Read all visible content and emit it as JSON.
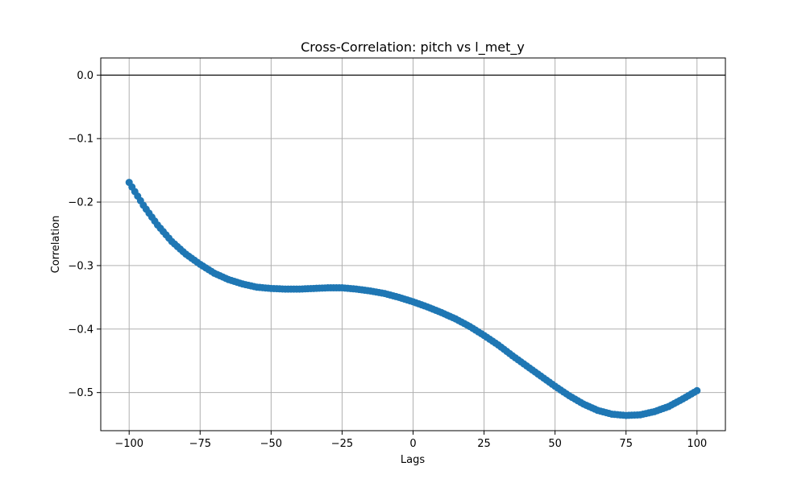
{
  "chart_data": {
    "type": "scatter",
    "title": "Cross-Correlation: pitch vs l_met_y",
    "xlabel": "Lags",
    "ylabel": "Correlation",
    "xlim": [
      -110,
      110
    ],
    "ylim": [
      -0.56,
      0.027
    ],
    "xticks": [
      -100,
      -75,
      -50,
      -25,
      0,
      25,
      50,
      75,
      100
    ],
    "yticks": [
      0.0,
      -0.1,
      -0.2,
      -0.3,
      -0.4,
      -0.5
    ],
    "xtick_labels": [
      "−100",
      "−75",
      "−50",
      "−25",
      "0",
      "25",
      "50",
      "75",
      "100"
    ],
    "ytick_labels": [
      "0.0",
      "−0.1",
      "−0.2",
      "−0.3",
      "−0.4",
      "−0.5"
    ],
    "grid": true,
    "reference_line": {
      "y": 0.0,
      "color": "#000000"
    },
    "marker_color": "#1f77b4",
    "line_color": "#1f77b4",
    "x_range": {
      "start": -100,
      "end": 100,
      "step": 1
    },
    "anchor_points": {
      "x": [
        -100,
        -95,
        -90,
        -85,
        -80,
        -75,
        -70,
        -65,
        -60,
        -55,
        -50,
        -45,
        -40,
        -35,
        -30,
        -25,
        -20,
        -15,
        -10,
        -5,
        0,
        5,
        10,
        15,
        20,
        25,
        30,
        35,
        40,
        45,
        50,
        55,
        60,
        65,
        70,
        75,
        80,
        85,
        90,
        95,
        100
      ],
      "y": [
        -0.169,
        -0.205,
        -0.236,
        -0.262,
        -0.282,
        -0.298,
        -0.312,
        -0.322,
        -0.329,
        -0.334,
        -0.336,
        -0.337,
        -0.337,
        -0.336,
        -0.335,
        -0.335,
        -0.337,
        -0.34,
        -0.344,
        -0.35,
        -0.357,
        -0.365,
        -0.374,
        -0.384,
        -0.396,
        -0.41,
        -0.425,
        -0.442,
        -0.458,
        -0.474,
        -0.49,
        -0.505,
        -0.518,
        -0.528,
        -0.534,
        -0.536,
        -0.535,
        -0.53,
        -0.522,
        -0.51,
        -0.497
      ]
    }
  }
}
